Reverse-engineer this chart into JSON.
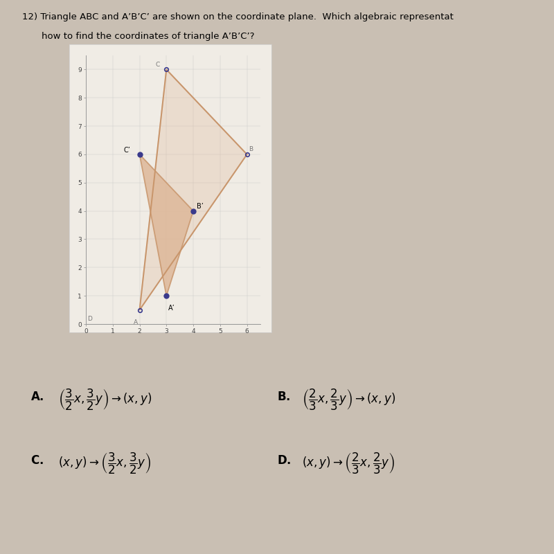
{
  "bg_color": "#c9bfb3",
  "paper_color": "#f0ece5",
  "plot_facecolor": "#ebe7e0",
  "triangle_ABC": {
    "A": [
      2,
      0.5
    ],
    "B": [
      6,
      6
    ],
    "C": [
      3,
      9
    ]
  },
  "triangle_A1B1C1": {
    "A1": [
      3,
      1
    ],
    "B1": [
      4,
      4
    ],
    "C1": [
      2,
      6
    ]
  },
  "triangle_color": "#c8956b",
  "triangle_fill": "#deb899",
  "point_color": "#3a3a8c",
  "axes_xlim": [
    0,
    6.5
  ],
  "axes_ylim": [
    0,
    9.5
  ],
  "xticks": [
    0,
    1,
    2,
    3,
    4,
    5,
    6
  ],
  "yticks": [
    0,
    1,
    2,
    3,
    4,
    5,
    6,
    7,
    8,
    9
  ],
  "title_line1": "12) Triangle ABC and A’B’C’ are shown on the coordinate plane.  Which algebraic representat",
  "title_line2": "how to find the coordinates of triangle A’B’C’?",
  "figsize": [
    8,
    8
  ],
  "dpi": 100
}
